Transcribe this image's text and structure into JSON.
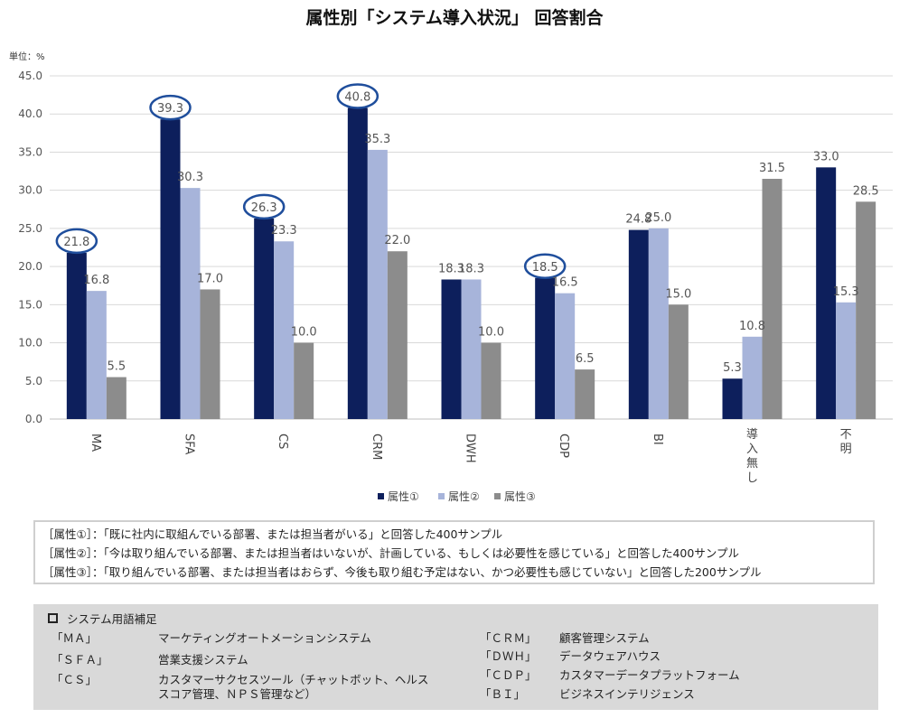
{
  "chart_data": {
    "type": "bar",
    "title": "属性別「システム導入状況」 回答割合",
    "unit_label": "単位：%",
    "categories": [
      "MA",
      "SFA",
      "CS",
      "CRM",
      "DWH",
      "CDP",
      "BI",
      "導入無し",
      "不明"
    ],
    "series": [
      {
        "name": "属性①",
        "color": "#0d1f5c",
        "values": [
          21.8,
          39.3,
          26.3,
          40.8,
          18.3,
          18.5,
          24.8,
          5.3,
          33.0
        ]
      },
      {
        "name": "属性②",
        "color": "#a7b4da",
        "values": [
          16.8,
          30.3,
          23.3,
          35.3,
          18.3,
          16.5,
          25.0,
          10.8,
          15.3
        ]
      },
      {
        "name": "属性③",
        "color": "#8c8c8c",
        "values": [
          5.5,
          17.0,
          10.0,
          22.0,
          10.0,
          6.5,
          15.0,
          31.5,
          28.5
        ]
      }
    ],
    "yticks": [
      "0.0",
      "5.0",
      "10.0",
      "15.0",
      "20.0",
      "25.0",
      "30.0",
      "35.0",
      "40.0",
      "45.0"
    ],
    "ylim": [
      0,
      45
    ],
    "circled_categories": [
      "MA",
      "SFA",
      "CS",
      "CRM",
      "CDP"
    ],
    "circle_color": "#1f4e9c",
    "legend_position": "bottom"
  },
  "notes": [
    "［属性①］：「既に社内に取組んでいる部署、または担当者がいる」と回答した400サンプル",
    "［属性②］：「今は取り組んでいる部署、または担当者はいないが、計画している、もしくは必要性を感じている」と回答した400サンプル",
    "［属性③］：「取り組んでいる部署、または担当者はおらず、今後も取り組む予定はない、かつ必要性も感じていない」と回答した200サンプル"
  ],
  "glossary": {
    "heading": "システム用語補足",
    "left": [
      {
        "abbr": "「ＭＡ」",
        "desc": "マーケティングオートメーションシステム"
      },
      {
        "abbr": "「ＳＦＡ」",
        "desc": "営業支援システム"
      },
      {
        "abbr": "「ＣＳ」",
        "desc": "カスタマーサクセスツール（チャットボット、ヘルス\nスコア管理、ＮＰＳ管理など）"
      }
    ],
    "right": [
      {
        "abbr": "「ＣＲＭ」",
        "desc": "顧客管理システム"
      },
      {
        "abbr": "「ＤＷＨ」",
        "desc": "データウェアハウス"
      },
      {
        "abbr": "「ＣＤＰ」",
        "desc": "カスタマーデータプラットフォーム"
      },
      {
        "abbr": "「ＢＩ」",
        "desc": "ビジネスインテリジェンス"
      }
    ]
  }
}
